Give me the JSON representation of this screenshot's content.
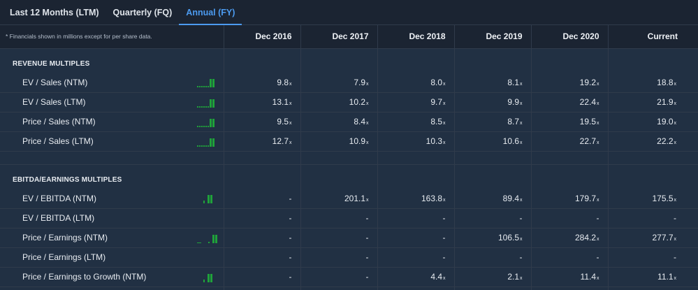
{
  "tabs": [
    {
      "label": "Last 12 Months (LTM)",
      "active": false
    },
    {
      "label": "Quarterly (FQ)",
      "active": false
    },
    {
      "label": "Annual (FY)",
      "active": true
    }
  ],
  "header": {
    "note": "* Financials shown in millions except for per share data.",
    "columns": [
      "Dec 2016",
      "Dec 2017",
      "Dec 2018",
      "Dec 2019",
      "Dec 2020",
      "Current"
    ]
  },
  "multiple_suffix": "x",
  "sections": [
    {
      "title": "REVENUE MULTIPLES",
      "rows": [
        {
          "label": "EV / Sales (NTM)",
          "values": [
            "9.8",
            "7.9",
            "8.0",
            "8.1",
            "19.2",
            "18.8"
          ]
        },
        {
          "label": "EV / Sales (LTM)",
          "values": [
            "13.1",
            "10.2",
            "9.7",
            "9.9",
            "22.4",
            "21.9"
          ]
        },
        {
          "label": "Price / Sales (NTM)",
          "values": [
            "9.5",
            "8.4",
            "8.5",
            "8.7",
            "19.5",
            "19.0"
          ]
        },
        {
          "label": "Price / Sales (LTM)",
          "values": [
            "12.7",
            "10.9",
            "10.3",
            "10.6",
            "22.7",
            "22.2"
          ]
        }
      ]
    },
    {
      "title": "EBITDA/EARNINGS MULTIPLES",
      "rows": [
        {
          "label": "EV / EBITDA (NTM)",
          "values": [
            "-",
            "201.1",
            "163.8",
            "89.4",
            "179.7",
            "175.5"
          ]
        },
        {
          "label": "EV / EBITDA (LTM)",
          "values": [
            "-",
            "-",
            "-",
            "-",
            "-",
            "-"
          ]
        },
        {
          "label": "Price / Earnings (NTM)",
          "values": [
            "-",
            "-",
            "-",
            "106.5",
            "284.2",
            "277.7"
          ]
        },
        {
          "label": "Price / Earnings (LTM)",
          "values": [
            "-",
            "-",
            "-",
            "-",
            "-",
            "-"
          ]
        },
        {
          "label": "Price / Earnings to Growth (NTM)",
          "values": [
            "-",
            "-",
            "4.4",
            "2.1",
            "11.4",
            "11.1"
          ]
        }
      ]
    }
  ],
  "colors": {
    "accent": "#4c9bf0",
    "spark": "#1fa23a",
    "background": "#1b2432",
    "row": "#213043"
  }
}
